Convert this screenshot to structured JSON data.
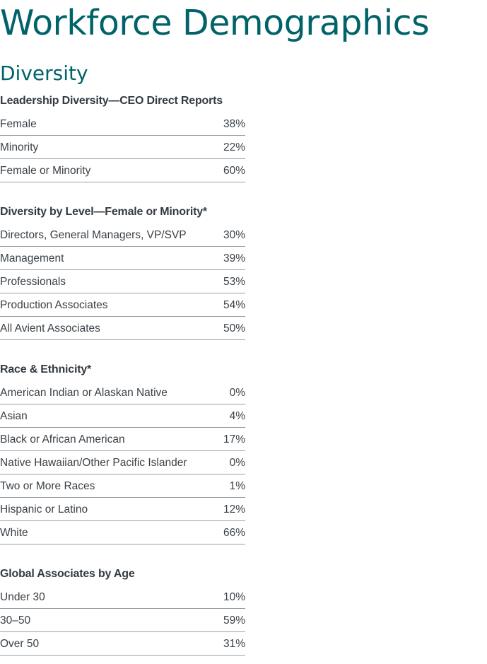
{
  "title": "Workforce Demographics",
  "subtitle": "Diversity",
  "sections": [
    {
      "heading": "Leadership Diversity—CEO Direct Reports",
      "rows": [
        [
          "Female",
          "38%"
        ],
        [
          "Minority",
          "22%"
        ],
        [
          "Female or Minority",
          "60%"
        ]
      ]
    },
    {
      "heading": "Diversity by Level—Female or Minority*",
      "rows": [
        [
          "Directors, General Managers, VP/SVP",
          "30%"
        ],
        [
          "Management",
          "39%"
        ],
        [
          "Professionals",
          "53%"
        ],
        [
          "Production Associates",
          "54%"
        ],
        [
          "All Avient Associates",
          "50%"
        ]
      ]
    },
    {
      "heading": "Race & Ethnicity*",
      "rows": [
        [
          "American Indian or Alaskan Native",
          "0%"
        ],
        [
          "Asian",
          "4%"
        ],
        [
          "Black or African American",
          "17%"
        ],
        [
          "Native Hawaiian/Other Pacific Islander",
          "0%"
        ],
        [
          "Two or More Races",
          "1%"
        ],
        [
          "Hispanic or Latino",
          "12%"
        ],
        [
          "White",
          "66%"
        ]
      ]
    },
    {
      "heading": "Global Associates by Age",
      "rows": [
        [
          "Under 30",
          "10%"
        ],
        [
          "30–50",
          "59%"
        ],
        [
          "Over 50",
          "31%"
        ]
      ]
    }
  ],
  "colors": {
    "accent": "#006369",
    "text": "#333a40",
    "divider": "#9a9ea2"
  }
}
